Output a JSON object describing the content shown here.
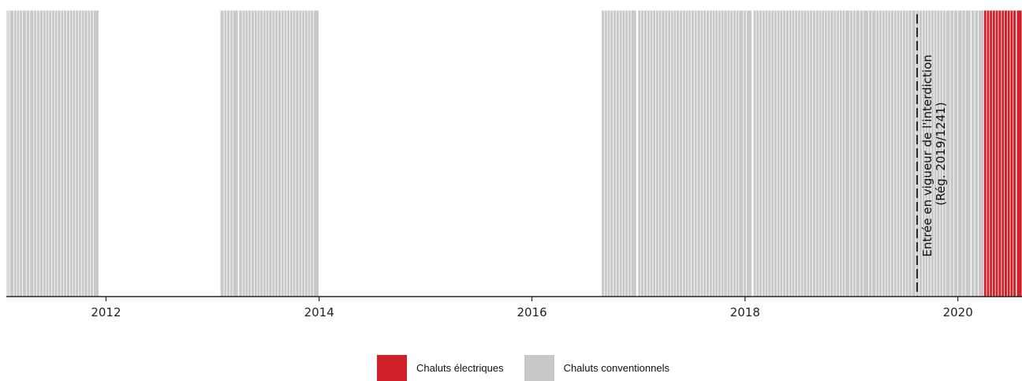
{
  "chart_data": {
    "type": "barcode-timeline",
    "x_axis": {
      "type": "date",
      "range": [
        "2011-01-24",
        "2020-08-08"
      ],
      "tick_labels": [
        "2012",
        "2014",
        "2016",
        "2018",
        "2020"
      ]
    },
    "grid": false,
    "legend_position": "bottom-center",
    "series": [
      {
        "name": "Chaluts électriques",
        "color": "#d0202a",
        "dates": [
          "2020-04-08",
          "2020-04-18",
          "2020-04-28",
          "2020-05-08",
          "2020-05-18",
          "2020-05-28",
          "2020-06-08",
          "2020-06-18",
          "2020-06-28",
          "2020-07-08",
          "2020-07-18",
          "2020-07-28",
          "2020-08-04"
        ]
      },
      {
        "name": "Chaluts conventionnels",
        "color": "#c8c8c8",
        "dates": [
          "2011-01-30",
          "2011-02-08",
          "2011-02-14",
          "2011-02-28",
          "2011-03-10",
          "2011-03-20",
          "2011-03-30",
          "2011-04-12",
          "2011-04-24",
          "2011-05-08",
          "2011-05-18",
          "2011-05-28",
          "2011-06-08",
          "2011-06-18",
          "2011-06-28",
          "2011-07-08",
          "2011-07-18",
          "2011-07-28",
          "2011-08-08",
          "2011-08-18",
          "2011-08-28",
          "2011-09-08",
          "2011-09-18",
          "2011-09-28",
          "2011-10-08",
          "2011-10-18",
          "2011-10-28",
          "2011-11-08",
          "2011-11-18",
          "2011-11-28",
          "2013-02-05",
          "2013-02-18",
          "2013-02-28",
          "2013-03-10",
          "2013-03-20",
          "2013-04-10",
          "2013-04-22",
          "2013-05-02",
          "2013-05-12",
          "2013-05-22",
          "2013-06-02",
          "2013-06-12",
          "2013-06-22",
          "2013-07-02",
          "2013-07-12",
          "2013-07-22",
          "2013-08-02",
          "2013-08-12",
          "2013-08-22",
          "2013-09-02",
          "2013-09-12",
          "2013-09-22",
          "2013-10-02",
          "2013-10-12",
          "2013-10-22",
          "2013-11-02",
          "2013-11-12",
          "2013-11-22",
          "2013-12-02",
          "2013-12-12",
          "2013-12-22",
          "2016-09-05",
          "2016-09-15",
          "2016-09-25",
          "2016-10-05",
          "2016-10-15",
          "2016-10-25",
          "2016-11-05",
          "2016-11-15",
          "2016-11-25",
          "2016-12-05",
          "2016-12-15",
          "2017-01-08",
          "2017-01-18",
          "2017-01-28",
          "2017-02-08",
          "2017-02-18",
          "2017-02-28",
          "2017-03-10",
          "2017-03-20",
          "2017-03-30",
          "2017-04-10",
          "2017-04-20",
          "2017-04-30",
          "2017-05-10",
          "2017-05-20",
          "2017-05-30",
          "2017-06-10",
          "2017-06-20",
          "2017-06-30",
          "2017-07-10",
          "2017-07-20",
          "2017-07-30",
          "2017-08-10",
          "2017-08-20",
          "2017-08-30",
          "2017-09-10",
          "2017-09-20",
          "2017-09-30",
          "2017-10-10",
          "2017-10-20",
          "2017-10-30",
          "2017-11-10",
          "2017-11-20",
          "2017-11-30",
          "2017-12-10",
          "2017-12-20",
          "2018-01-05",
          "2018-01-15",
          "2018-02-08",
          "2018-02-18",
          "2018-02-28",
          "2018-03-10",
          "2018-03-20",
          "2018-03-30",
          "2018-04-10",
          "2018-04-20",
          "2018-04-30",
          "2018-05-10",
          "2018-05-20",
          "2018-05-30",
          "2018-06-10",
          "2018-06-20",
          "2018-06-30",
          "2018-07-10",
          "2018-07-20",
          "2018-07-30",
          "2018-08-10",
          "2018-08-20",
          "2018-08-30",
          "2018-09-10",
          "2018-09-20",
          "2018-09-30",
          "2018-10-10",
          "2018-10-20",
          "2018-10-30",
          "2018-11-10",
          "2018-11-20",
          "2018-11-30",
          "2018-12-10",
          "2018-12-20",
          "2019-01-05",
          "2019-01-15",
          "2019-01-25",
          "2019-02-08",
          "2019-02-20",
          "2019-03-10",
          "2019-03-22",
          "2019-04-05",
          "2019-04-15",
          "2019-04-25",
          "2019-05-05",
          "2019-05-15",
          "2019-05-25",
          "2019-06-05",
          "2019-06-15",
          "2019-06-25",
          "2019-07-05",
          "2019-07-15",
          "2019-07-25",
          "2019-08-05",
          "2019-08-20",
          "2019-08-30",
          "2019-09-10",
          "2019-09-20",
          "2019-09-30",
          "2019-10-10",
          "2019-10-20",
          "2019-10-30",
          "2019-11-10",
          "2019-11-20",
          "2019-11-30",
          "2019-12-15",
          "2019-12-28",
          "2020-01-10",
          "2020-01-25",
          "2020-02-05",
          "2020-02-25",
          "2020-03-08",
          "2020-03-20"
        ]
      }
    ],
    "annotations": [
      {
        "date": "2019-08-14",
        "style": "dashed",
        "color": "#222222",
        "lines": [
          "Entrée en vigueur de l'interdiction",
          "(Rég. 2019/1241)"
        ]
      }
    ]
  }
}
